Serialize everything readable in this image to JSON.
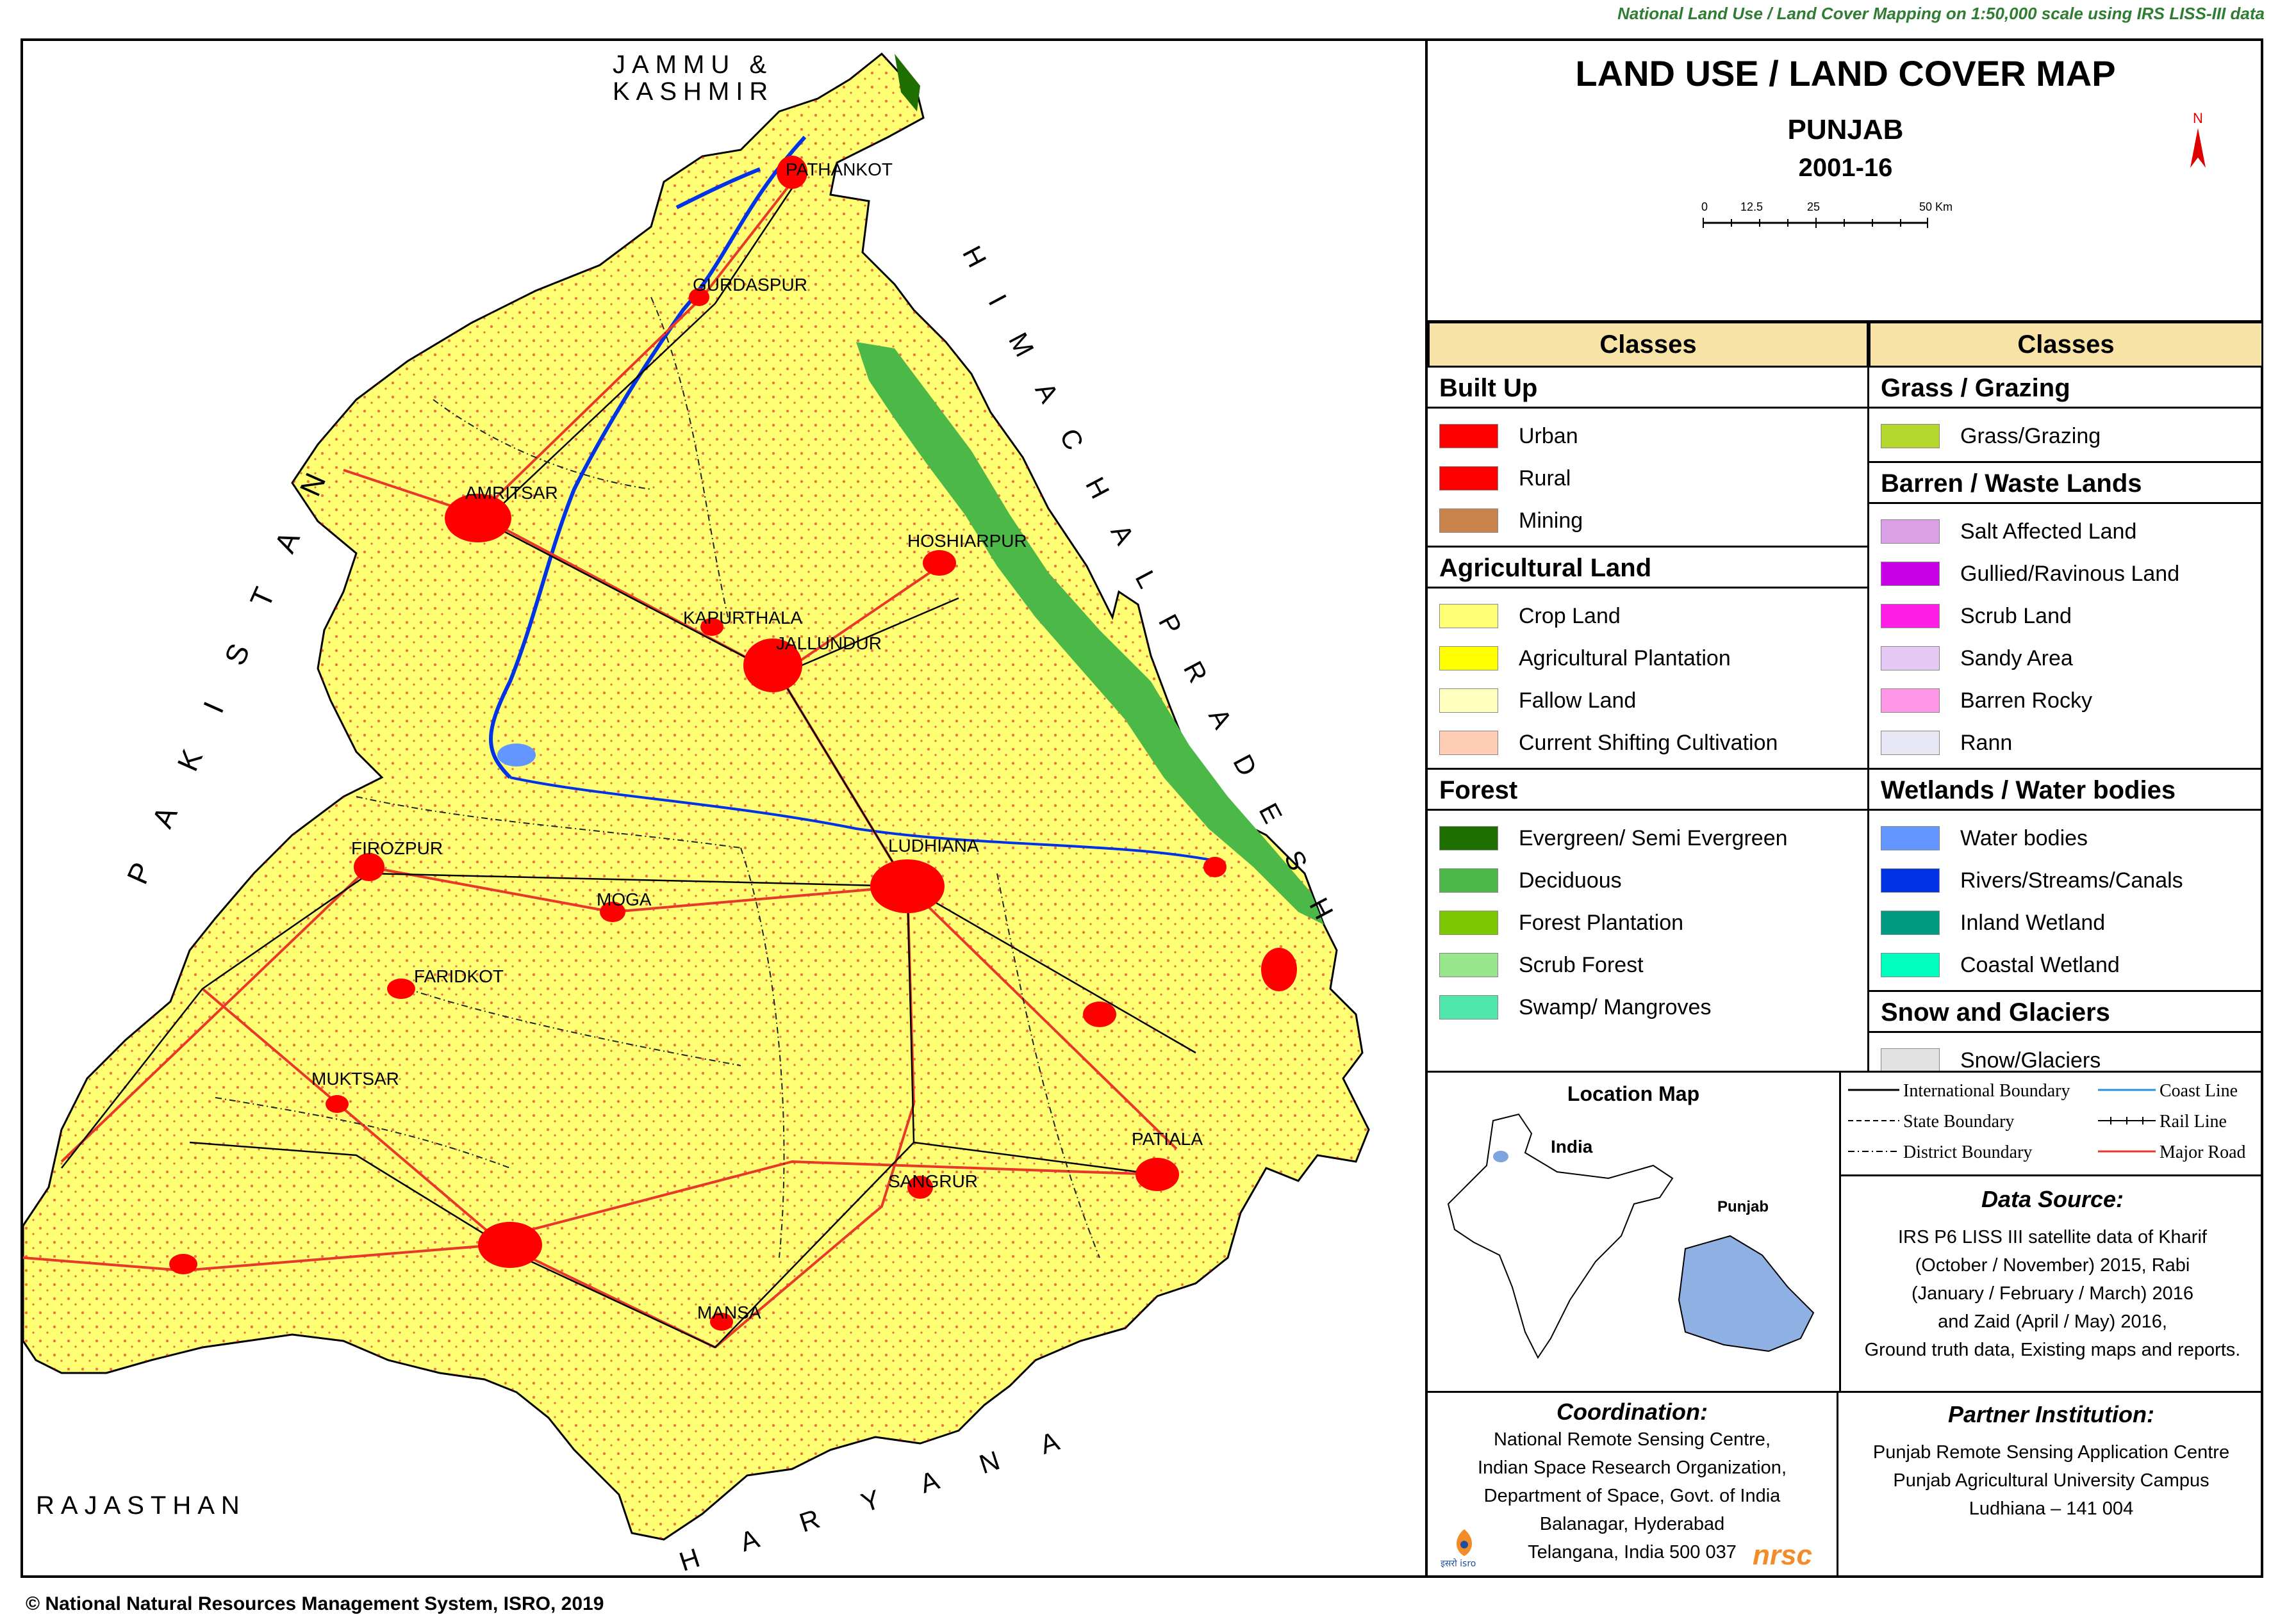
{
  "banner": "National Land Use / Land Cover Mapping on 1:50,000 scale using IRS LISS-III data",
  "title": "LAND USE / LAND COVER MAP",
  "state": "PUNJAB",
  "years": "2001-16",
  "north": "N",
  "scale": {
    "ticks": [
      "0",
      "12.5",
      "25",
      "50 Km"
    ]
  },
  "neighbours": {
    "jk1": "JAMMU &",
    "jk2": "KASHMIR",
    "pakistan": "P A K I S T A N",
    "himachal": "H I M A C H A L  P R A D E S H",
    "rajasthan": "RAJASTHAN",
    "haryana": "H A R Y A N A"
  },
  "cities": [
    "PATHANKOT",
    "GURDASPUR",
    "AMRITSAR",
    "HOSHIARPUR",
    "KAPURTHALA",
    "JALLUNDUR",
    "FIROZPUR",
    "LUDHIANA",
    "MOGA",
    "FARIDKOT",
    "MUKTSAR",
    "PATIALA",
    "SANGRUR",
    "MANSA"
  ],
  "legend": {
    "header_left": "Classes",
    "header_right": "Classes",
    "left": [
      {
        "section": "Built Up",
        "items": [
          {
            "label": "Urban",
            "color": "#ff0000"
          },
          {
            "label": "Rural",
            "color": "#ff0000"
          },
          {
            "label": "Mining",
            "color": "#c8844a"
          }
        ]
      },
      {
        "section": "Agricultural Land",
        "items": [
          {
            "label": "Crop Land",
            "color": "#ffff73"
          },
          {
            "label": "Agricultural Plantation",
            "color": "#ffff00"
          },
          {
            "label": "Fallow Land",
            "color": "#ffffbe"
          },
          {
            "label": "Current Shifting Cultivation",
            "color": "#ffcdb4"
          }
        ]
      },
      {
        "section": "Forest",
        "items": [
          {
            "label": "Evergreen/ Semi Evergreen",
            "color": "#1e6e00"
          },
          {
            "label": "Deciduous",
            "color": "#4cb848"
          },
          {
            "label": "Forest Plantation",
            "color": "#7dc800"
          },
          {
            "label": "Scrub Forest",
            "color": "#98e68c"
          },
          {
            "label": "Swamp/ Mangroves",
            "color": "#4ee6aa"
          }
        ]
      }
    ],
    "right": [
      {
        "section": "Grass / Grazing",
        "items": [
          {
            "label": "Grass/Grazing",
            "color": "#b4d72d"
          }
        ]
      },
      {
        "section": "Barren / Waste Lands",
        "items": [
          {
            "label": "Salt Affected Land",
            "color": "#dca0e6"
          },
          {
            "label": "Gullied/Ravinous Land",
            "color": "#c800e6"
          },
          {
            "label": "Scrub Land",
            "color": "#ff1ee6"
          },
          {
            "label": "Sandy Area",
            "color": "#e6c8f5"
          },
          {
            "label": "Barren Rocky",
            "color": "#ff96e6"
          },
          {
            "label": "Rann",
            "color": "#e6e6f5"
          }
        ]
      },
      {
        "section": "Wetlands / Water bodies",
        "items": [
          {
            "label": "Water bodies",
            "color": "#6496ff"
          },
          {
            "label": "Rivers/Streams/Canals",
            "color": "#0032e6"
          },
          {
            "label": "Inland Wetland",
            "color": "#009b82"
          },
          {
            "label": "Coastal Wetland",
            "color": "#00ffbe"
          }
        ]
      },
      {
        "section": "Snow and Glaciers",
        "items": [
          {
            "label": "Snow/Glaciers",
            "color": "#e1e1e1"
          }
        ]
      }
    ]
  },
  "location_map": {
    "title": "Location Map",
    "india": "India",
    "punjab": "Punjab"
  },
  "line_legend": {
    "intl": "International Boundary",
    "coast": "Coast Line",
    "state": "State Boundary",
    "rail": "Rail Line",
    "district": "District Boundary",
    "road": "Major Road"
  },
  "data_source": {
    "title": "Data Source:",
    "lines": [
      "IRS P6 LISS III satellite data of Kharif",
      "(October / November) 2015, Rabi",
      "(January / February / March) 2016",
      "and Zaid (April / May) 2016,",
      "Ground truth data, Existing maps and reports."
    ]
  },
  "coordination": {
    "title": "Coordination:",
    "lines": [
      "National Remote Sensing Centre,",
      "Indian Space Research Organization,",
      "Department of Space, Govt. of India",
      "Balanagar, Hyderabad",
      "Telangana, India 500 037"
    ],
    "logo_text": "nrsc",
    "isro_logo": "इसरो isro"
  },
  "partner": {
    "title": "Partner Institution:",
    "lines": [
      "Punjab  Remote Sensing Application  Centre",
      "Punjab  Agricultural University Campus",
      "Ludhiana  – 141 004"
    ]
  },
  "footer": "© National Natural Resources Management System, ISRO, 2019"
}
